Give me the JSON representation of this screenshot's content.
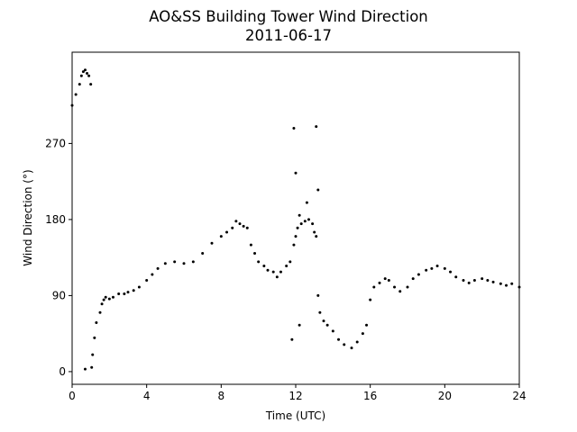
{
  "chart_data": {
    "type": "scatter",
    "title": "AO&SS Building Tower Wind Direction",
    "subtitle": "2011-06-17",
    "xlabel": "Time (UTC)",
    "ylabel": "Wind Direction (°)",
    "xlim": [
      0,
      24
    ],
    "ylim": [
      -15,
      378
    ],
    "xticks": [
      0,
      4,
      8,
      12,
      16,
      20,
      24
    ],
    "yticks": [
      0,
      90,
      180,
      270
    ],
    "grid": false,
    "legend": "none",
    "marker_color": "#000000",
    "series": [
      {
        "x": [
          0.0,
          0.2,
          0.4,
          0.5,
          0.6,
          0.7,
          0.8,
          0.9,
          1.0,
          0.7,
          1.05,
          1.1,
          1.2,
          1.3,
          1.5,
          1.6,
          1.7,
          1.8,
          2.0,
          2.2,
          2.5,
          2.8,
          3.0,
          3.3,
          3.6,
          4.0,
          4.3,
          4.6,
          5.0,
          5.5,
          6.0,
          6.5,
          7.0,
          7.5,
          8.0,
          8.3,
          8.6,
          8.8,
          9.0,
          9.2,
          9.4,
          9.6,
          9.8,
          10.0,
          10.3,
          10.5,
          10.8,
          11.0,
          11.2,
          11.5,
          11.7,
          11.9,
          12.0,
          12.1,
          12.2,
          12.3,
          12.5,
          12.7,
          12.9,
          13.0,
          13.1,
          13.2,
          13.3,
          13.5,
          13.7,
          14.0,
          14.3,
          14.6,
          15.0,
          15.3,
          15.6,
          15.8,
          16.0,
          16.2,
          16.5,
          16.8,
          17.0,
          17.3,
          17.6,
          18.0,
          18.3,
          18.6,
          19.0,
          19.3,
          19.6,
          20.0,
          20.3,
          20.6,
          21.0,
          21.3,
          21.6,
          22.0,
          22.3,
          22.6,
          23.0,
          23.3,
          23.6,
          24.0,
          11.8,
          12.0,
          11.9,
          13.1,
          13.2,
          12.2,
          12.6
        ],
        "y": [
          315,
          328,
          340,
          350,
          355,
          357,
          353,
          350,
          340,
          3,
          5,
          20,
          40,
          58,
          70,
          80,
          85,
          88,
          86,
          88,
          92,
          92,
          94,
          96,
          100,
          108,
          115,
          122,
          128,
          130,
          128,
          130,
          140,
          152,
          160,
          165,
          170,
          178,
          175,
          172,
          170,
          150,
          140,
          130,
          125,
          120,
          118,
          112,
          118,
          125,
          130,
          150,
          160,
          170,
          185,
          175,
          178,
          180,
          175,
          165,
          160,
          90,
          70,
          60,
          55,
          48,
          38,
          32,
          28,
          35,
          45,
          55,
          85,
          100,
          105,
          110,
          108,
          100,
          95,
          100,
          110,
          115,
          120,
          122,
          125,
          122,
          118,
          112,
          108,
          105,
          108,
          110,
          108,
          106,
          104,
          102,
          104,
          100,
          38,
          235,
          288,
          290,
          215,
          55,
          200
        ]
      }
    ]
  }
}
